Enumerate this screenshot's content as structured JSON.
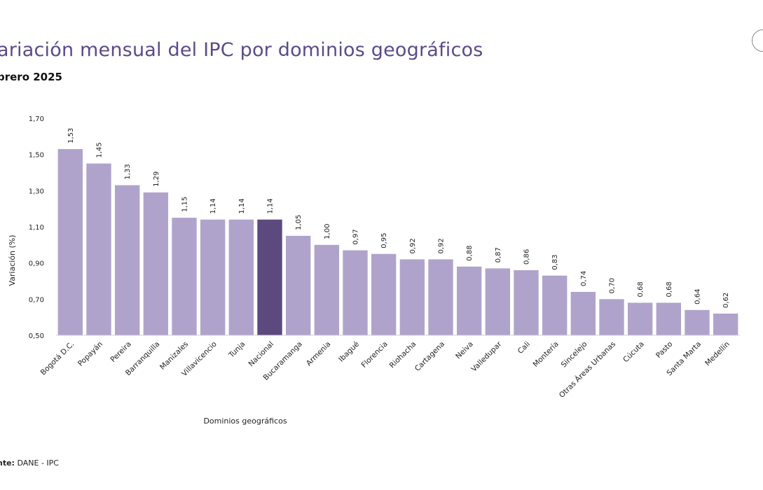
{
  "header": {
    "title": "ariación mensual del IPC por dominios geográficos",
    "subtitle": "brero 2025"
  },
  "footer": {
    "source_label": "nte:",
    "source_value": "DANE - IPC"
  },
  "colors": {
    "bar": "#b0a3cb",
    "highlight": "#5c4a7e",
    "title": "#5c4a87"
  },
  "chart_data": {
    "type": "bar",
    "title": "ariación mensual del IPC por dominios geográficos",
    "subtitle": "brero 2025",
    "xlabel": "Dominios geográficos",
    "ylabel": "Variación (%)",
    "ylim": [
      0.5,
      1.7
    ],
    "yticks": [
      0.5,
      0.7,
      0.9,
      1.1,
      1.3,
      1.5,
      1.7
    ],
    "ytick_labels": [
      "0,50",
      "0,70",
      "0,90",
      "1,10",
      "1,30",
      "1,50",
      "1,70"
    ],
    "grid": false,
    "highlight": "Nacional",
    "categories": [
      "Bogotá D.C.",
      "Popayán",
      "Pereira",
      "Barranquilla",
      "Manizales",
      "Villavicencio",
      "Tunja",
      "Nacional",
      "Bucaramanga",
      "Armenia",
      "Ibagué",
      "Florencia",
      "Riohacha",
      "Cartagena",
      "Neiva",
      "Valledupar",
      "Cali",
      "Montería",
      "Sincelejo",
      "Otras Áreas Urbanas",
      "Cúcuta",
      "Pasto",
      "Santa Marta",
      "Medellín"
    ],
    "values": [
      1.53,
      1.45,
      1.33,
      1.29,
      1.15,
      1.14,
      1.14,
      1.14,
      1.05,
      1.0,
      0.97,
      0.95,
      0.92,
      0.92,
      0.88,
      0.87,
      0.86,
      0.83,
      0.74,
      0.7,
      0.68,
      0.68,
      0.64,
      0.62
    ],
    "value_labels": [
      "1,53",
      "1,45",
      "1,33",
      "1,29",
      "1,15",
      "1,14",
      "1,14",
      "1,14",
      "1,05",
      "1,00",
      "0,97",
      "0,95",
      "0,92",
      "0,92",
      "0,88",
      "0,87",
      "0,86",
      "0,83",
      "0,74",
      "0,70",
      "0,68",
      "0,68",
      "0,64",
      "0,62"
    ]
  }
}
